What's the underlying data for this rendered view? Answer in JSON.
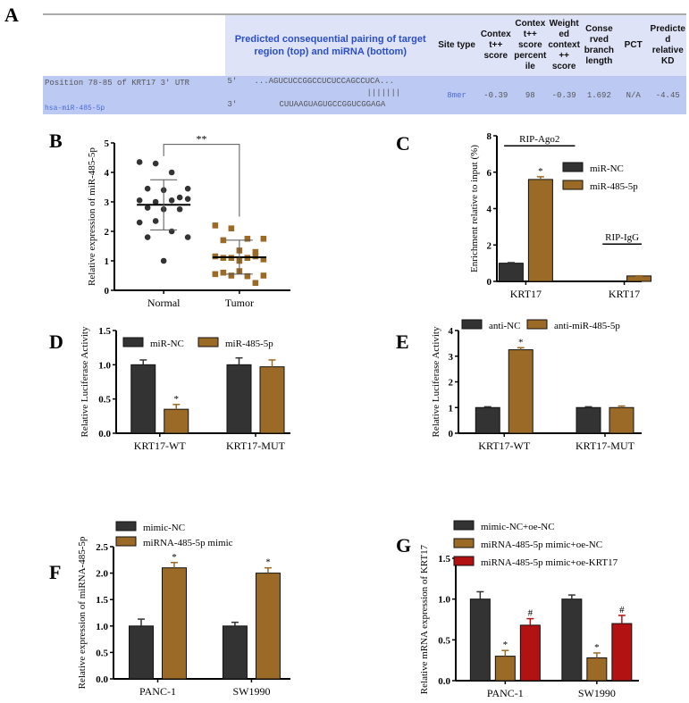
{
  "panel_letters": [
    "A",
    "B",
    "C",
    "D",
    "E",
    "F",
    "G"
  ],
  "table": {
    "headers": [
      "",
      "Predicted consequential pairing of target region (top) and miRNA (bottom)",
      "Site type",
      "Contex t++ score",
      "Contex t++ score percent ile",
      "Weight ed context ++ score",
      "Conse rved branch length",
      "PCT",
      "Predicte d relative KD"
    ],
    "row": {
      "position": "Position 78-85 of KRT17 3' UTR",
      "mirna": "hsa-miR-485-5p",
      "seq_top_label": "5'",
      "seq_top": "...AGUCUCCGGCCUCUCCAGCCUCA...",
      "seq_pairs": "|||||||",
      "seq_bottom_label": "3'",
      "seq_bottom": "CUUAAGUAGUGCCGGUCGGAGA",
      "site_type": "8mer",
      "context_score": "-0.39",
      "percentile": "98",
      "weighted": "-0.39",
      "branch_length": "1.692",
      "pct": "N/A",
      "kd": "-4.45"
    }
  },
  "colors": {
    "dark": "#333333",
    "brown": "#9a6a26",
    "red": "#b31212"
  },
  "chart_data": [
    {
      "panel": "B",
      "type": "scatter",
      "ylabel": "Relative expression of miR-485-5p",
      "categories": [
        "Normal",
        "Tumor"
      ],
      "ylim": [
        0,
        5
      ],
      "yticks": [
        "0",
        "1",
        "2",
        "3",
        "4",
        "5"
      ],
      "groups": [
        {
          "name": "Normal",
          "color": "dark",
          "marker": "circle",
          "values": [
            4.35,
            4.3,
            4.0,
            3.45,
            3.45,
            3.4,
            3.15,
            3.05,
            3.0,
            3.05,
            3.1,
            2.8,
            2.75,
            2.75,
            2.3,
            2.35,
            2.0,
            1.8,
            1.8,
            1.0
          ],
          "mean": 2.9,
          "sd_low": 2.05,
          "sd_high": 3.75
        },
        {
          "name": "Tumor",
          "color": "brown",
          "marker": "square",
          "values": [
            2.2,
            2.1,
            1.75,
            1.75,
            1.7,
            1.35,
            1.3,
            1.15,
            1.1,
            1.1,
            1.05,
            1.1,
            1.0,
            1.15,
            0.55,
            0.5,
            0.48,
            0.5,
            0.6,
            0.65,
            0.25
          ],
          "mean": 1.12,
          "sd_low": 0.55,
          "sd_high": 1.7
        }
      ],
      "significance": "**"
    },
    {
      "panel": "C",
      "type": "bar",
      "ylabel": "Enrichment relative to input (%)",
      "categories": [
        "KRT17",
        "KRT17"
      ],
      "ylim": [
        0,
        8
      ],
      "yticks": [
        "0",
        "2",
        "4",
        "6",
        "8"
      ],
      "legend": "right",
      "group_labels": [
        "RIP-Ago2",
        "RIP-IgG"
      ],
      "series": [
        {
          "name": "miR-NC",
          "color": "dark",
          "values": [
            1.0,
            0
          ],
          "errors": [
            0.03,
            0
          ],
          "marks": [
            "",
            ""
          ]
        },
        {
          "name": "miR-485-5p",
          "color": "brown",
          "values": [
            5.6,
            0.3
          ],
          "errors": [
            0.15,
            0.01
          ],
          "marks": [
            "*",
            ""
          ]
        }
      ]
    },
    {
      "panel": "D",
      "type": "bar",
      "ylabel": "Relative Luciferase Activity",
      "categories": [
        "KRT17-WT",
        "KRT17-MUT"
      ],
      "ylim": [
        0,
        1.5
      ],
      "yticks": [
        "0.0",
        "0.5",
        "1.0",
        "1.5"
      ],
      "legend": "top",
      "series": [
        {
          "name": "miR-NC",
          "color": "dark",
          "values": [
            1.0,
            1.0
          ],
          "errors": [
            0.07,
            0.1
          ],
          "marks": [
            "",
            ""
          ]
        },
        {
          "name": "miR-485-5p",
          "color": "brown",
          "values": [
            0.35,
            0.97
          ],
          "errors": [
            0.07,
            0.1
          ],
          "marks": [
            "*",
            ""
          ]
        }
      ]
    },
    {
      "panel": "E",
      "type": "bar",
      "ylabel": "Relative Luciferase Activity",
      "categories": [
        "KRT17-WT",
        "KRT17-MUT"
      ],
      "ylim": [
        0,
        4
      ],
      "yticks": [
        "0",
        "1",
        "2",
        "3",
        "4"
      ],
      "legend": "top",
      "series": [
        {
          "name": "anti-NC",
          "color": "dark",
          "values": [
            1.0,
            1.0
          ],
          "errors": [
            0.03,
            0.03
          ],
          "marks": [
            "",
            ""
          ]
        },
        {
          "name": "anti-miR-485-5p",
          "color": "brown",
          "values": [
            3.25,
            1.0
          ],
          "errors": [
            0.08,
            0.06
          ],
          "marks": [
            "*",
            ""
          ]
        }
      ]
    },
    {
      "panel": "F",
      "type": "bar",
      "ylabel": "Relative expression of miRNA-485-5p",
      "categories": [
        "PANC-1",
        "SW1990"
      ],
      "ylim": [
        0,
        2.5
      ],
      "yticks": [
        "0.0",
        "0.5",
        "1.0",
        "1.5",
        "2.0",
        "2.5"
      ],
      "legend": "top-left",
      "series": [
        {
          "name": "mimic-NC",
          "color": "dark",
          "values": [
            1.0,
            1.0
          ],
          "errors": [
            0.13,
            0.07
          ],
          "marks": [
            "",
            ""
          ]
        },
        {
          "name": "miRNA-485-5p mimic",
          "color": "brown",
          "values": [
            2.1,
            2.0
          ],
          "errors": [
            0.1,
            0.1
          ],
          "marks": [
            "*",
            "*"
          ]
        }
      ]
    },
    {
      "panel": "G",
      "type": "bar",
      "ylabel": "Relative mRNA expression of KRT17",
      "categories": [
        "PANC-1",
        "SW1990"
      ],
      "ylim": [
        0,
        1.5
      ],
      "yticks": [
        "0.0",
        "0.5",
        "1.0",
        "1.5"
      ],
      "legend": "top-left",
      "series": [
        {
          "name": "mimic-NC+oe-NC",
          "color": "dark",
          "values": [
            1.0,
            1.0
          ],
          "errors": [
            0.09,
            0.05
          ],
          "marks": [
            "",
            ""
          ]
        },
        {
          "name": "miRNA-485-5p mimic+oe-NC",
          "color": "brown",
          "values": [
            0.3,
            0.28
          ],
          "errors": [
            0.07,
            0.06
          ],
          "marks": [
            "*",
            "*"
          ]
        },
        {
          "name": "miRNA-485-5p mimic+oe-KRT17",
          "color": "red",
          "values": [
            0.68,
            0.7
          ],
          "errors": [
            0.08,
            0.1
          ],
          "marks": [
            "#",
            "#"
          ]
        }
      ]
    }
  ]
}
